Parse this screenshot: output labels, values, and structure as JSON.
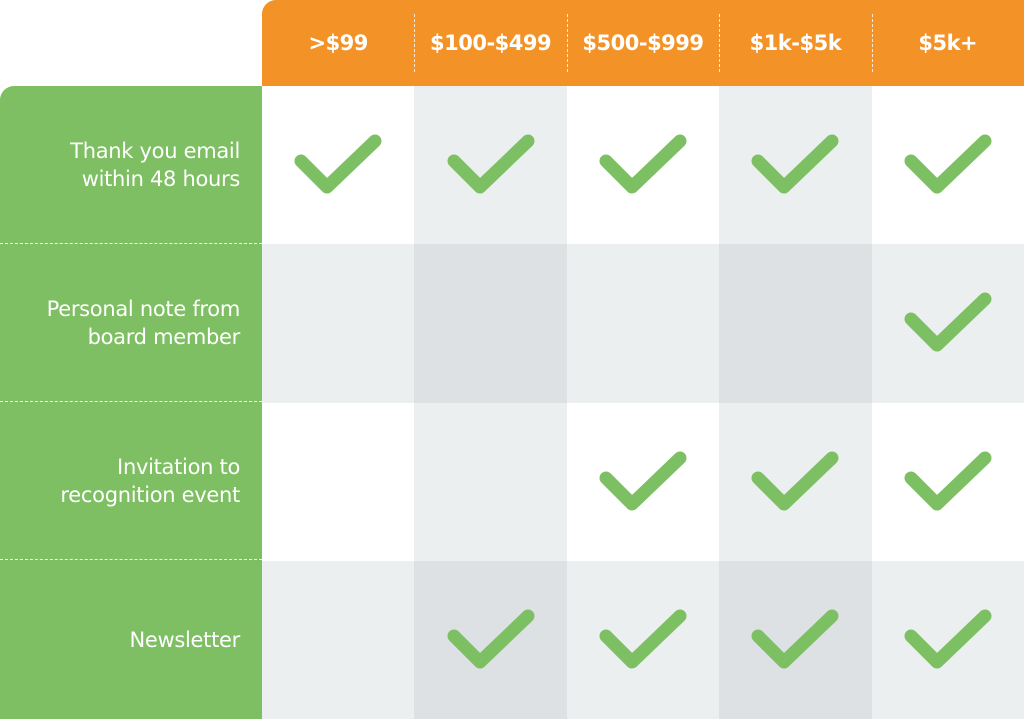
{
  "colors": {
    "header": "#f29227",
    "sidebar": "#7dbf62",
    "check": "#7dc063"
  },
  "columns": [
    ">$99",
    "$100-$499",
    "$500-$999",
    "$1k-$5k",
    "$5k+"
  ],
  "rows": [
    {
      "label_lines": [
        "Thank you email",
        "within 48 hours"
      ],
      "checks": [
        true,
        true,
        true,
        true,
        true
      ]
    },
    {
      "label_lines": [
        "Personal note from",
        "board member"
      ],
      "checks": [
        false,
        false,
        false,
        false,
        true
      ]
    },
    {
      "label_lines": [
        "Invitation to",
        "recognition event"
      ],
      "checks": [
        false,
        false,
        true,
        true,
        true
      ]
    },
    {
      "label_lines": [
        "Newsletter"
      ],
      "checks": [
        false,
        true,
        true,
        true,
        true
      ]
    }
  ],
  "icon": "checkmark-icon"
}
